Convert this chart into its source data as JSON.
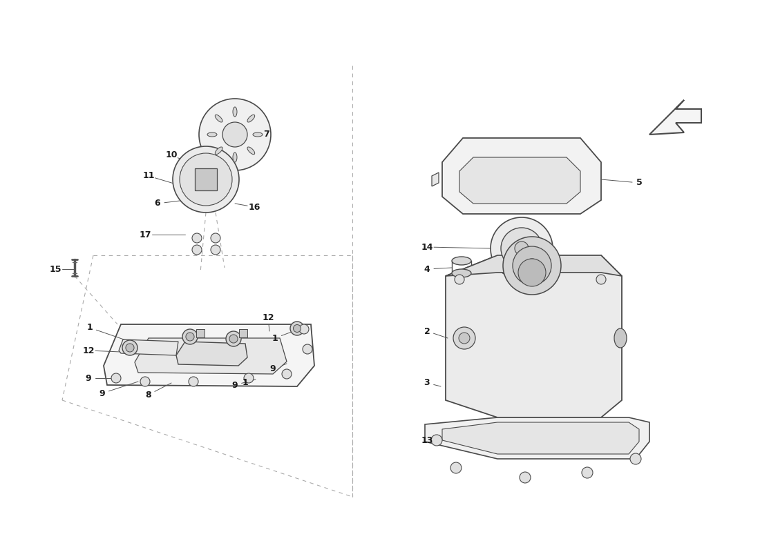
{
  "bg_color": "#ffffff",
  "line_color": "#4a4a4a",
  "label_color": "#1a1a1a",
  "fig_width": 11.0,
  "fig_height": 8.0,
  "dpi": 100
}
